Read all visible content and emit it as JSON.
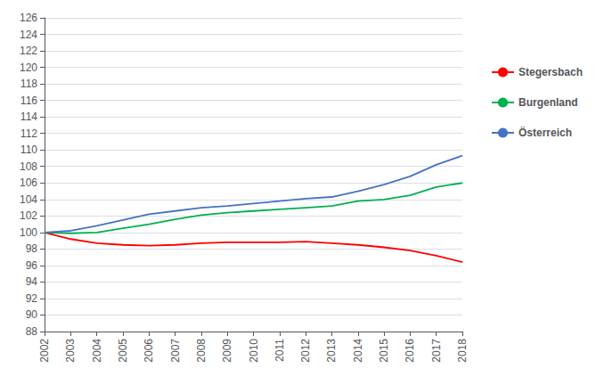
{
  "chart_data": {
    "type": "line",
    "x": [
      2002,
      2003,
      2004,
      2005,
      2006,
      2007,
      2008,
      2009,
      2010,
      2011,
      2012,
      2013,
      2014,
      2015,
      2016,
      2017,
      2018
    ],
    "series": [
      {
        "name": "Stegersbach",
        "color": "#ff0000",
        "values": [
          100,
          99.2,
          98.7,
          98.5,
          98.4,
          98.5,
          98.7,
          98.8,
          98.8,
          98.8,
          98.9,
          98.7,
          98.5,
          98.2,
          97.8,
          97.2,
          96.4
        ]
      },
      {
        "name": "Burgenland",
        "color": "#00b050",
        "values": [
          100,
          99.9,
          100.0,
          100.5,
          101.0,
          101.6,
          102.1,
          102.4,
          102.6,
          102.8,
          103.0,
          103.2,
          103.8,
          104.0,
          104.5,
          105.5,
          106.0
        ]
      },
      {
        "name": "Österreich",
        "color": "#4472c4",
        "values": [
          100,
          100.2,
          100.8,
          101.5,
          102.2,
          102.6,
          103.0,
          103.2,
          103.5,
          103.8,
          104.1,
          104.3,
          105.0,
          105.8,
          106.8,
          108.2,
          109.3
        ]
      }
    ],
    "xlim": [
      2002,
      2018
    ],
    "xticks": [
      2002,
      2003,
      2004,
      2005,
      2006,
      2007,
      2008,
      2009,
      2010,
      2011,
      2012,
      2013,
      2014,
      2015,
      2016,
      2017,
      2018
    ],
    "ylim": [
      88,
      126
    ],
    "yticks": [
      88,
      90,
      92,
      94,
      96,
      98,
      100,
      102,
      104,
      106,
      108,
      110,
      112,
      114,
      116,
      118,
      120,
      122,
      124,
      126
    ],
    "grid": "y",
    "legend": "right"
  }
}
